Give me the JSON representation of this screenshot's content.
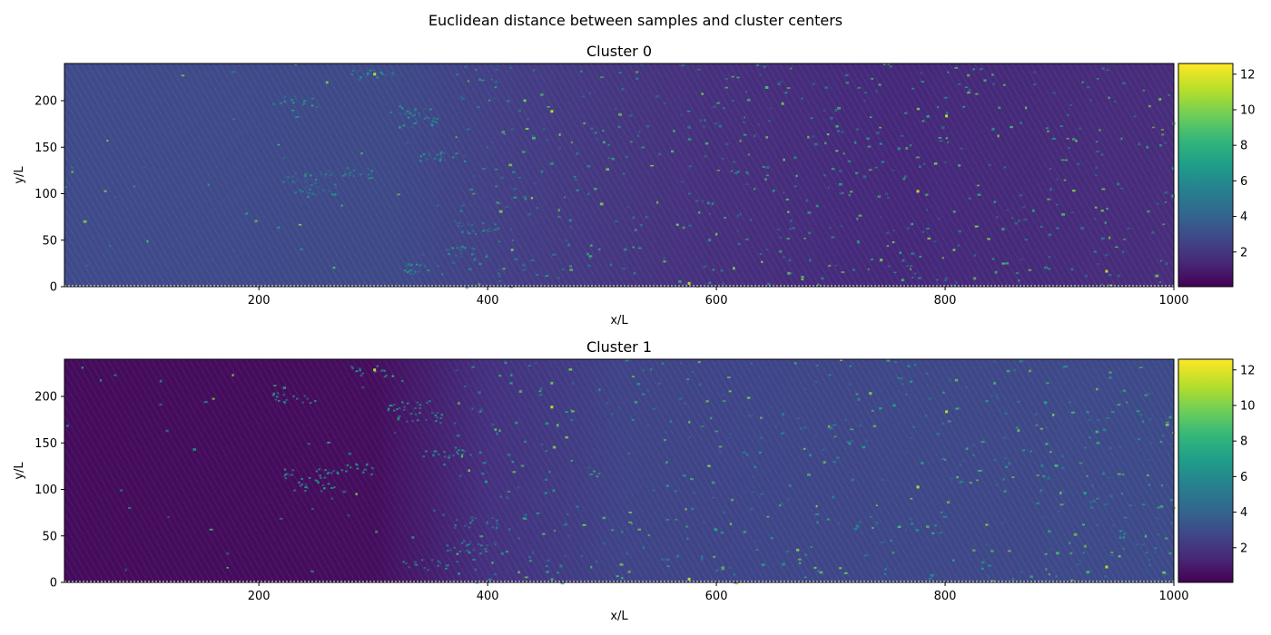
{
  "figure": {
    "suptitle": "Euclidean distance between samples and cluster centers"
  },
  "colorbar": {
    "colormap": "viridis",
    "stops": [
      "#440154",
      "#482878",
      "#3e4989",
      "#31688e",
      "#26828e",
      "#1f9e89",
      "#35b779",
      "#6ece58",
      "#b5de2b",
      "#fde725"
    ]
  },
  "chart_data": [
    {
      "type": "heatmap",
      "title": "Cluster 0",
      "xlabel": "x/L",
      "ylabel": "y/L",
      "xlim": [
        30,
        1000
      ],
      "ylim": [
        0,
        240
      ],
      "xticks": [
        200,
        400,
        600,
        800,
        1000
      ],
      "yticks": [
        0,
        50,
        100,
        150,
        200
      ],
      "colorbar": {
        "range": [
          0.05,
          12.6
        ],
        "ticks": [
          2,
          4,
          6,
          8,
          10,
          12
        ]
      },
      "description_levels": {
        "left_region_x_max": 370,
        "left_region_value": 2.8,
        "right_region_value": 1.3,
        "speckle_value_typical": 4.5,
        "max_value": 12.6
      }
    },
    {
      "type": "heatmap",
      "title": "Cluster 1",
      "xlabel": "x/L",
      "ylabel": "y/L",
      "xlim": [
        30,
        1000
      ],
      "ylim": [
        0,
        240
      ],
      "xticks": [
        200,
        400,
        600,
        800,
        1000
      ],
      "yticks": [
        0,
        50,
        100,
        150,
        200
      ],
      "colorbar": {
        "range": [
          0.05,
          12.6
        ],
        "ticks": [
          2,
          4,
          6,
          8,
          10,
          12
        ]
      },
      "description_levels": {
        "left_region_x_max": 370,
        "left_region_value": 0.5,
        "right_region_value": 2.6,
        "speckle_value_typical": 4.5,
        "max_value": 12.6
      }
    }
  ]
}
